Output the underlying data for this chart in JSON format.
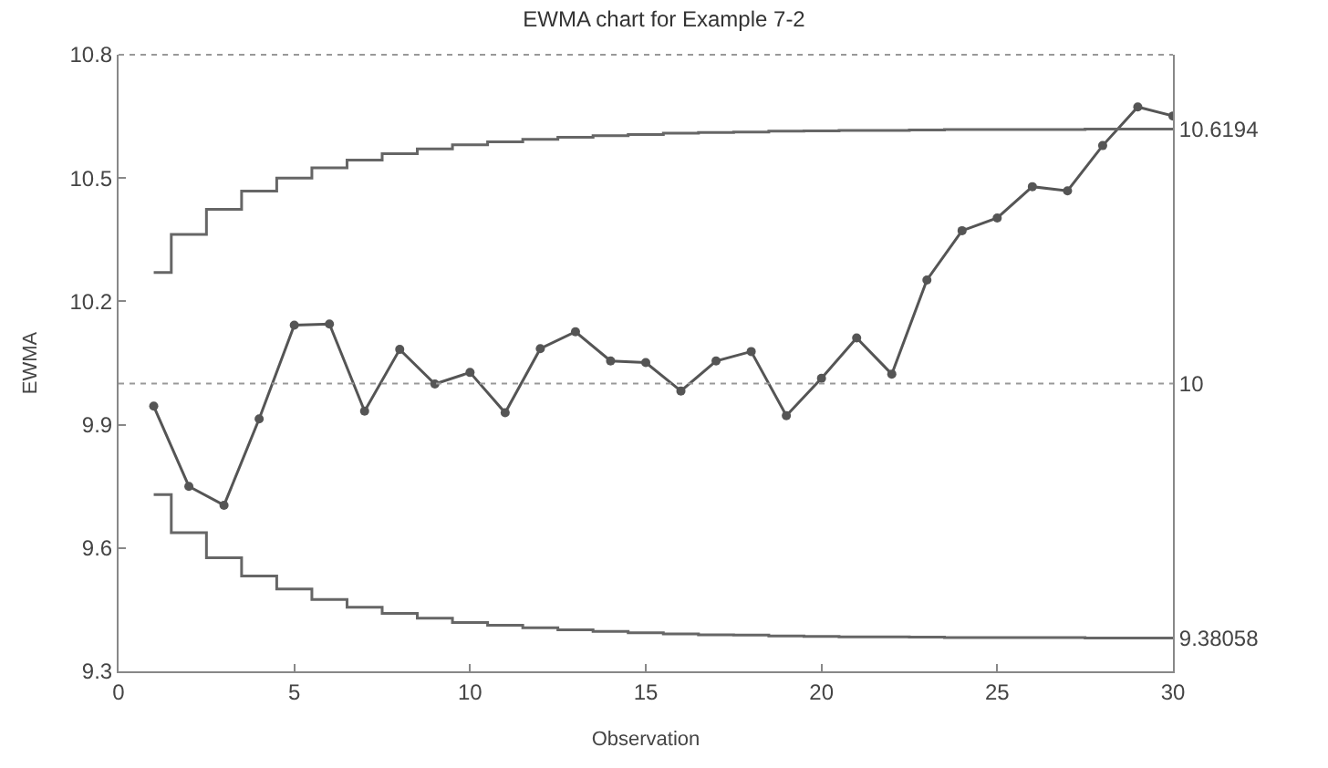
{
  "chart_data": {
    "type": "line",
    "title": "EWMA chart for Example 7-2",
    "xlabel": "Observation",
    "ylabel": "EWMA",
    "x": [
      1,
      2,
      3,
      4,
      5,
      6,
      7,
      8,
      9,
      10,
      11,
      12,
      13,
      14,
      15,
      16,
      17,
      18,
      19,
      20,
      21,
      22,
      23,
      24,
      25,
      26,
      27,
      28,
      29,
      30
    ],
    "series": [
      {
        "color": "#555555",
        "marker": "circle",
        "values": [
          9.945,
          9.75,
          9.704,
          9.914,
          10.142,
          10.145,
          9.933,
          10.083,
          9.999,
          10.027,
          9.929,
          10.085,
          10.126,
          10.055,
          10.051,
          9.982,
          10.055,
          10.078,
          9.922,
          10.013,
          10.111,
          10.023,
          10.252,
          10.372,
          10.403,
          10.479,
          10.469,
          10.579,
          10.673,
          10.651
        ]
      },
      {
        "type": "step",
        "color": "#666666",
        "marker": "none",
        "values": [
          10.27,
          10.363,
          10.424,
          10.468,
          10.5,
          10.525,
          10.544,
          10.559,
          10.571,
          10.581,
          10.588,
          10.594,
          10.599,
          10.603,
          10.606,
          10.609,
          10.611,
          10.612,
          10.614,
          10.615,
          10.616,
          10.616,
          10.617,
          10.618,
          10.618,
          10.618,
          10.618,
          10.619,
          10.619,
          10.619
        ]
      },
      {
        "type": "step",
        "color": "#666666",
        "marker": "none",
        "values": [
          9.73,
          9.637,
          9.576,
          9.532,
          9.5,
          9.475,
          9.456,
          9.441,
          9.429,
          9.419,
          9.412,
          9.406,
          9.401,
          9.397,
          9.394,
          9.391,
          9.389,
          9.388,
          9.386,
          9.385,
          9.384,
          9.384,
          9.383,
          9.382,
          9.382,
          9.382,
          9.382,
          9.381,
          9.381,
          9.381
        ]
      }
    ],
    "ref_lines": [
      {
        "axis": "y",
        "value": 10,
        "color": "#999999",
        "line_style": "dotted"
      }
    ],
    "xlim": [
      0,
      30
    ],
    "xticks": [
      0,
      5,
      10,
      15,
      20,
      25,
      30
    ],
    "ylim": [
      9.3,
      10.8
    ],
    "yticks": [
      9.3,
      9.6,
      9.9,
      10.2,
      10.5,
      10.8
    ],
    "y2lim": [
      9.3,
      10.8
    ],
    "y2ticks": [
      10.6194,
      10,
      9.38058
    ]
  }
}
